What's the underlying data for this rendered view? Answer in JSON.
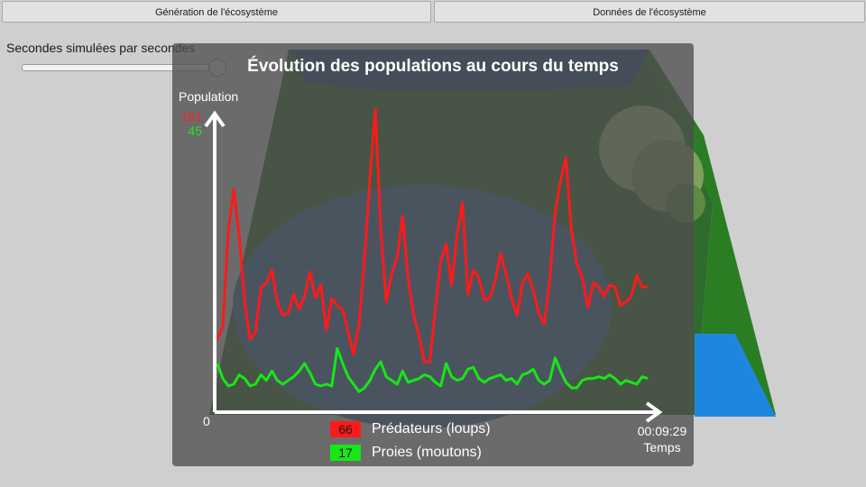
{
  "toolbar": {
    "generation_label": "Génération de l'écosystème",
    "data_label": "Données de l'écosystème"
  },
  "speed_slider": {
    "label": "Secondes simulées par secondes",
    "level": 1.0
  },
  "chart_data": {
    "type": "line",
    "title": "Évolution des populations au cours du temps",
    "ylabel": "Population",
    "xlabel": "Temps",
    "x_start_label": "0",
    "x_end_label": "00:09:29",
    "y_top_labels": [
      "161",
      "45"
    ],
    "ylim": [
      0,
      161
    ],
    "series": [
      {
        "name": "Prédateurs (loups)",
        "current": "66",
        "color": "#ff1a1a",
        "values": [
          38,
          45,
          96,
          118,
          93,
          58,
          38,
          42,
          66,
          68,
          75,
          58,
          51,
          52,
          62,
          54,
          61,
          74,
          60,
          67,
          43,
          60,
          56,
          54,
          42,
          30,
          46,
          81,
          124,
          161,
          96,
          58,
          73,
          82,
          104,
          71,
          51,
          40,
          26,
          26,
          54,
          80,
          89,
          67,
          94,
          111,
          62,
          75,
          71,
          59,
          60,
          69,
          84,
          73,
          60,
          51,
          68,
          73,
          64,
          52,
          46,
          69,
          106,
          123,
          135,
          96,
          78,
          71,
          55,
          68,
          66,
          61,
          67,
          66,
          56,
          58,
          61,
          72,
          66,
          66
        ]
      },
      {
        "name": "Proies (moutons)",
        "current": "17",
        "color": "#17e617",
        "values": [
          25,
          17,
          13,
          14,
          19,
          17,
          13,
          14,
          19,
          16,
          21,
          16,
          14,
          16,
          18,
          21,
          25,
          20,
          14,
          13,
          14,
          13,
          33,
          25,
          18,
          14,
          10,
          12,
          16,
          22,
          26,
          18,
          16,
          14,
          21,
          15,
          16,
          17,
          19,
          18,
          15,
          13,
          25,
          18,
          16,
          17,
          22,
          23,
          17,
          15,
          17,
          18,
          19,
          16,
          17,
          14,
          19,
          20,
          22,
          16,
          14,
          16,
          28,
          21,
          15,
          12,
          12,
          16,
          17,
          17,
          18,
          17,
          19,
          17,
          14,
          16,
          15,
          14,
          18,
          17
        ]
      }
    ]
  }
}
